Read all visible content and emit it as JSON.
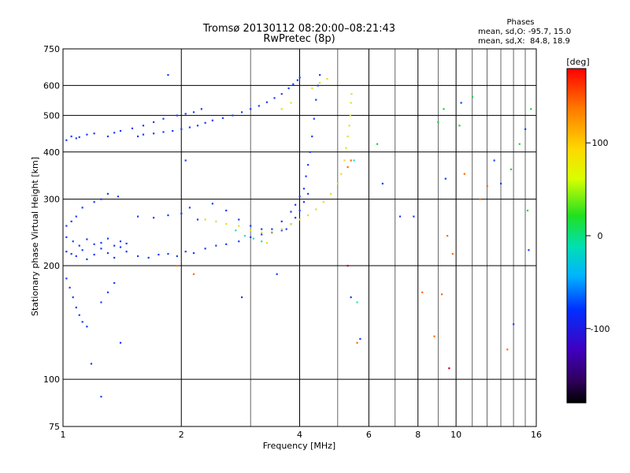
{
  "chart_data": {
    "type": "scatter",
    "title": "Tromsø 20130112 08:20:00–08:21:43",
    "subtitle": "RwPretec (8p)",
    "xlabel": "Frequency [MHz]",
    "ylabel": "Stationary phase Virtual Height [km]",
    "x_scale": "log",
    "y_scale": "log",
    "xlim": [
      1,
      16
    ],
    "ylim": [
      75,
      750
    ],
    "x_ticks": [
      1,
      2,
      4,
      6,
      8,
      10,
      16
    ],
    "x_tick_labels": [
      "1",
      "2",
      "4",
      "6",
      "8",
      "10",
      "16"
    ],
    "y_ticks": [
      75,
      100,
      200,
      300,
      400,
      500,
      600,
      750
    ],
    "y_tick_labels": [
      "75",
      "100",
      "200",
      "300",
      "400",
      "500",
      "600",
      "750"
    ],
    "grid": true,
    "phase_stats": {
      "heading": "Phases",
      "line_o": "mean, sd,O: -95.7, 15.0",
      "line_x": "mean, sd,X:  84.8, 18.9"
    },
    "colorbar": {
      "unit_label": "[deg]",
      "range": [
        -180,
        180
      ],
      "ticks": [
        100,
        0,
        -100
      ],
      "tick_labels": [
        "100",
        "0",
        "-100"
      ]
    },
    "series": [
      {
        "color": "#1a3cff",
        "x": [
          1.02,
          1.05,
          1.08,
          1.12,
          1.15,
          1.2,
          1.25,
          1.3,
          1.35,
          1.4,
          1.45,
          1.02,
          1.06,
          1.1,
          1.15,
          1.2,
          1.25,
          1.3,
          1.35,
          1.4,
          1.45,
          1.55,
          1.65,
          1.75,
          1.85,
          1.95,
          2.05,
          2.15,
          2.3,
          2.45,
          2.6,
          2.8,
          3.0,
          3.2,
          3.4,
          3.6,
          3.8,
          3.9,
          4.0,
          4.1,
          4.15,
          4.2,
          4.25,
          4.3,
          4.35,
          4.4,
          4.45,
          4.5,
          1.02,
          1.05,
          1.08,
          1.12,
          1.2,
          1.25,
          1.3,
          1.38,
          1.55,
          1.7,
          1.85,
          2.0,
          2.1,
          2.2,
          2.4,
          2.6,
          2.8,
          3.0,
          3.2,
          3.4,
          3.6,
          3.7,
          3.8,
          3.9,
          4.0,
          4.1,
          4.2,
          1.02,
          1.05,
          1.08,
          1.1,
          1.15,
          1.2,
          1.3,
          1.35,
          1.4,
          1.5,
          1.6,
          1.7,
          1.8,
          1.95,
          2.05,
          2.15,
          2.25,
          1.02,
          1.04,
          1.06,
          1.08,
          1.1,
          1.12,
          1.15,
          1.25,
          1.3,
          1.35
        ],
        "y": [
          218,
          215,
          212,
          220,
          208,
          214,
          222,
          216,
          210,
          224,
          218,
          238,
          232,
          226,
          235,
          228,
          230,
          236,
          226,
          232,
          229,
          212,
          210,
          214,
          215,
          212,
          218,
          216,
          222,
          226,
          228,
          232,
          238,
          242,
          250,
          262,
          278,
          290,
          305,
          320,
          345,
          370,
          400,
          440,
          490,
          550,
          600,
          640,
          255,
          262,
          270,
          285,
          295,
          300,
          310,
          305,
          270,
          268,
          272,
          275,
          285,
          265,
          292,
          280,
          265,
          255,
          250,
          245,
          248,
          250,
          258,
          268,
          280,
          295,
          310,
          430,
          440,
          435,
          438,
          445,
          448,
          440,
          450,
          455,
          462,
          470,
          480,
          490,
          500,
          505,
          510,
          520,
          185,
          175,
          165,
          155,
          148,
          142,
          138,
          160,
          170,
          180
        ]
      },
      {
        "color": "#1a3cff",
        "x": [
          1.55,
          1.6,
          1.7,
          1.8,
          1.9,
          2.0,
          2.1,
          2.2,
          2.3,
          2.4,
          2.55,
          2.7,
          2.85,
          3.0,
          3.15,
          3.3,
          3.45,
          3.6,
          3.75,
          3.85,
          3.95,
          4.0
        ],
        "y": [
          440,
          445,
          448,
          452,
          455,
          460,
          465,
          470,
          478,
          485,
          492,
          500,
          510,
          520,
          530,
          542,
          556,
          570,
          590,
          605,
          620,
          630
        ]
      },
      {
        "color": "#e0e020",
        "x": [
          2.3,
          2.45,
          2.6,
          2.8,
          3.0,
          3.2,
          3.4,
          3.6,
          3.8,
          4.0,
          4.2,
          4.4,
          4.6,
          4.8,
          5.0,
          5.1,
          5.2,
          5.25,
          5.3,
          5.35,
          5.38,
          5.4,
          5.42,
          4.3,
          4.5,
          4.7,
          3.6,
          3.8,
          3.3
        ],
        "y": [
          265,
          262,
          258,
          255,
          248,
          245,
          246,
          250,
          258,
          265,
          272,
          282,
          295,
          310,
          330,
          350,
          380,
          410,
          440,
          470,
          500,
          540,
          570,
          590,
          610,
          625,
          520,
          540,
          230
        ]
      },
      {
        "color": "#20e0c0",
        "x": [
          2.9,
          3.05,
          3.2,
          2.75,
          5.5,
          5.6
        ],
        "y": [
          240,
          236,
          232,
          248,
          380,
          160
        ]
      },
      {
        "color": "#ff6a00",
        "x": [
          1.95,
          2.15,
          5.3,
          5.4,
          5.6,
          9.2,
          9.5,
          9.8,
          10.5,
          11.5,
          12.0,
          13.5,
          8.2,
          8.8
        ],
        "y": [
          200,
          190,
          365,
          380,
          125,
          168,
          240,
          215,
          350,
          300,
          325,
          120,
          170,
          130
        ]
      },
      {
        "color": "#20d040",
        "x": [
          9.0,
          9.3,
          10.2,
          11.0,
          14.5,
          15.5,
          15.2,
          13.8,
          6.3
        ],
        "y": [
          480,
          520,
          470,
          560,
          420,
          520,
          280,
          360,
          420
        ]
      },
      {
        "color": "#1a3cff",
        "x": [
          1.85,
          2.05,
          2.85,
          3.5,
          5.4,
          5.7,
          6.5,
          7.2,
          7.8,
          9.4,
          10.3,
          12.5,
          13.0,
          14.0,
          15.0,
          15.3,
          1.25,
          1.4,
          1.18
        ],
        "y": [
          640,
          380,
          165,
          190,
          165,
          128,
          330,
          270,
          270,
          340,
          540,
          380,
          330,
          140,
          460,
          220,
          90,
          125,
          110
        ]
      },
      {
        "color": "#c00020",
        "x": [
          9.6,
          5.3
        ],
        "y": [
          107,
          200
        ]
      }
    ]
  }
}
